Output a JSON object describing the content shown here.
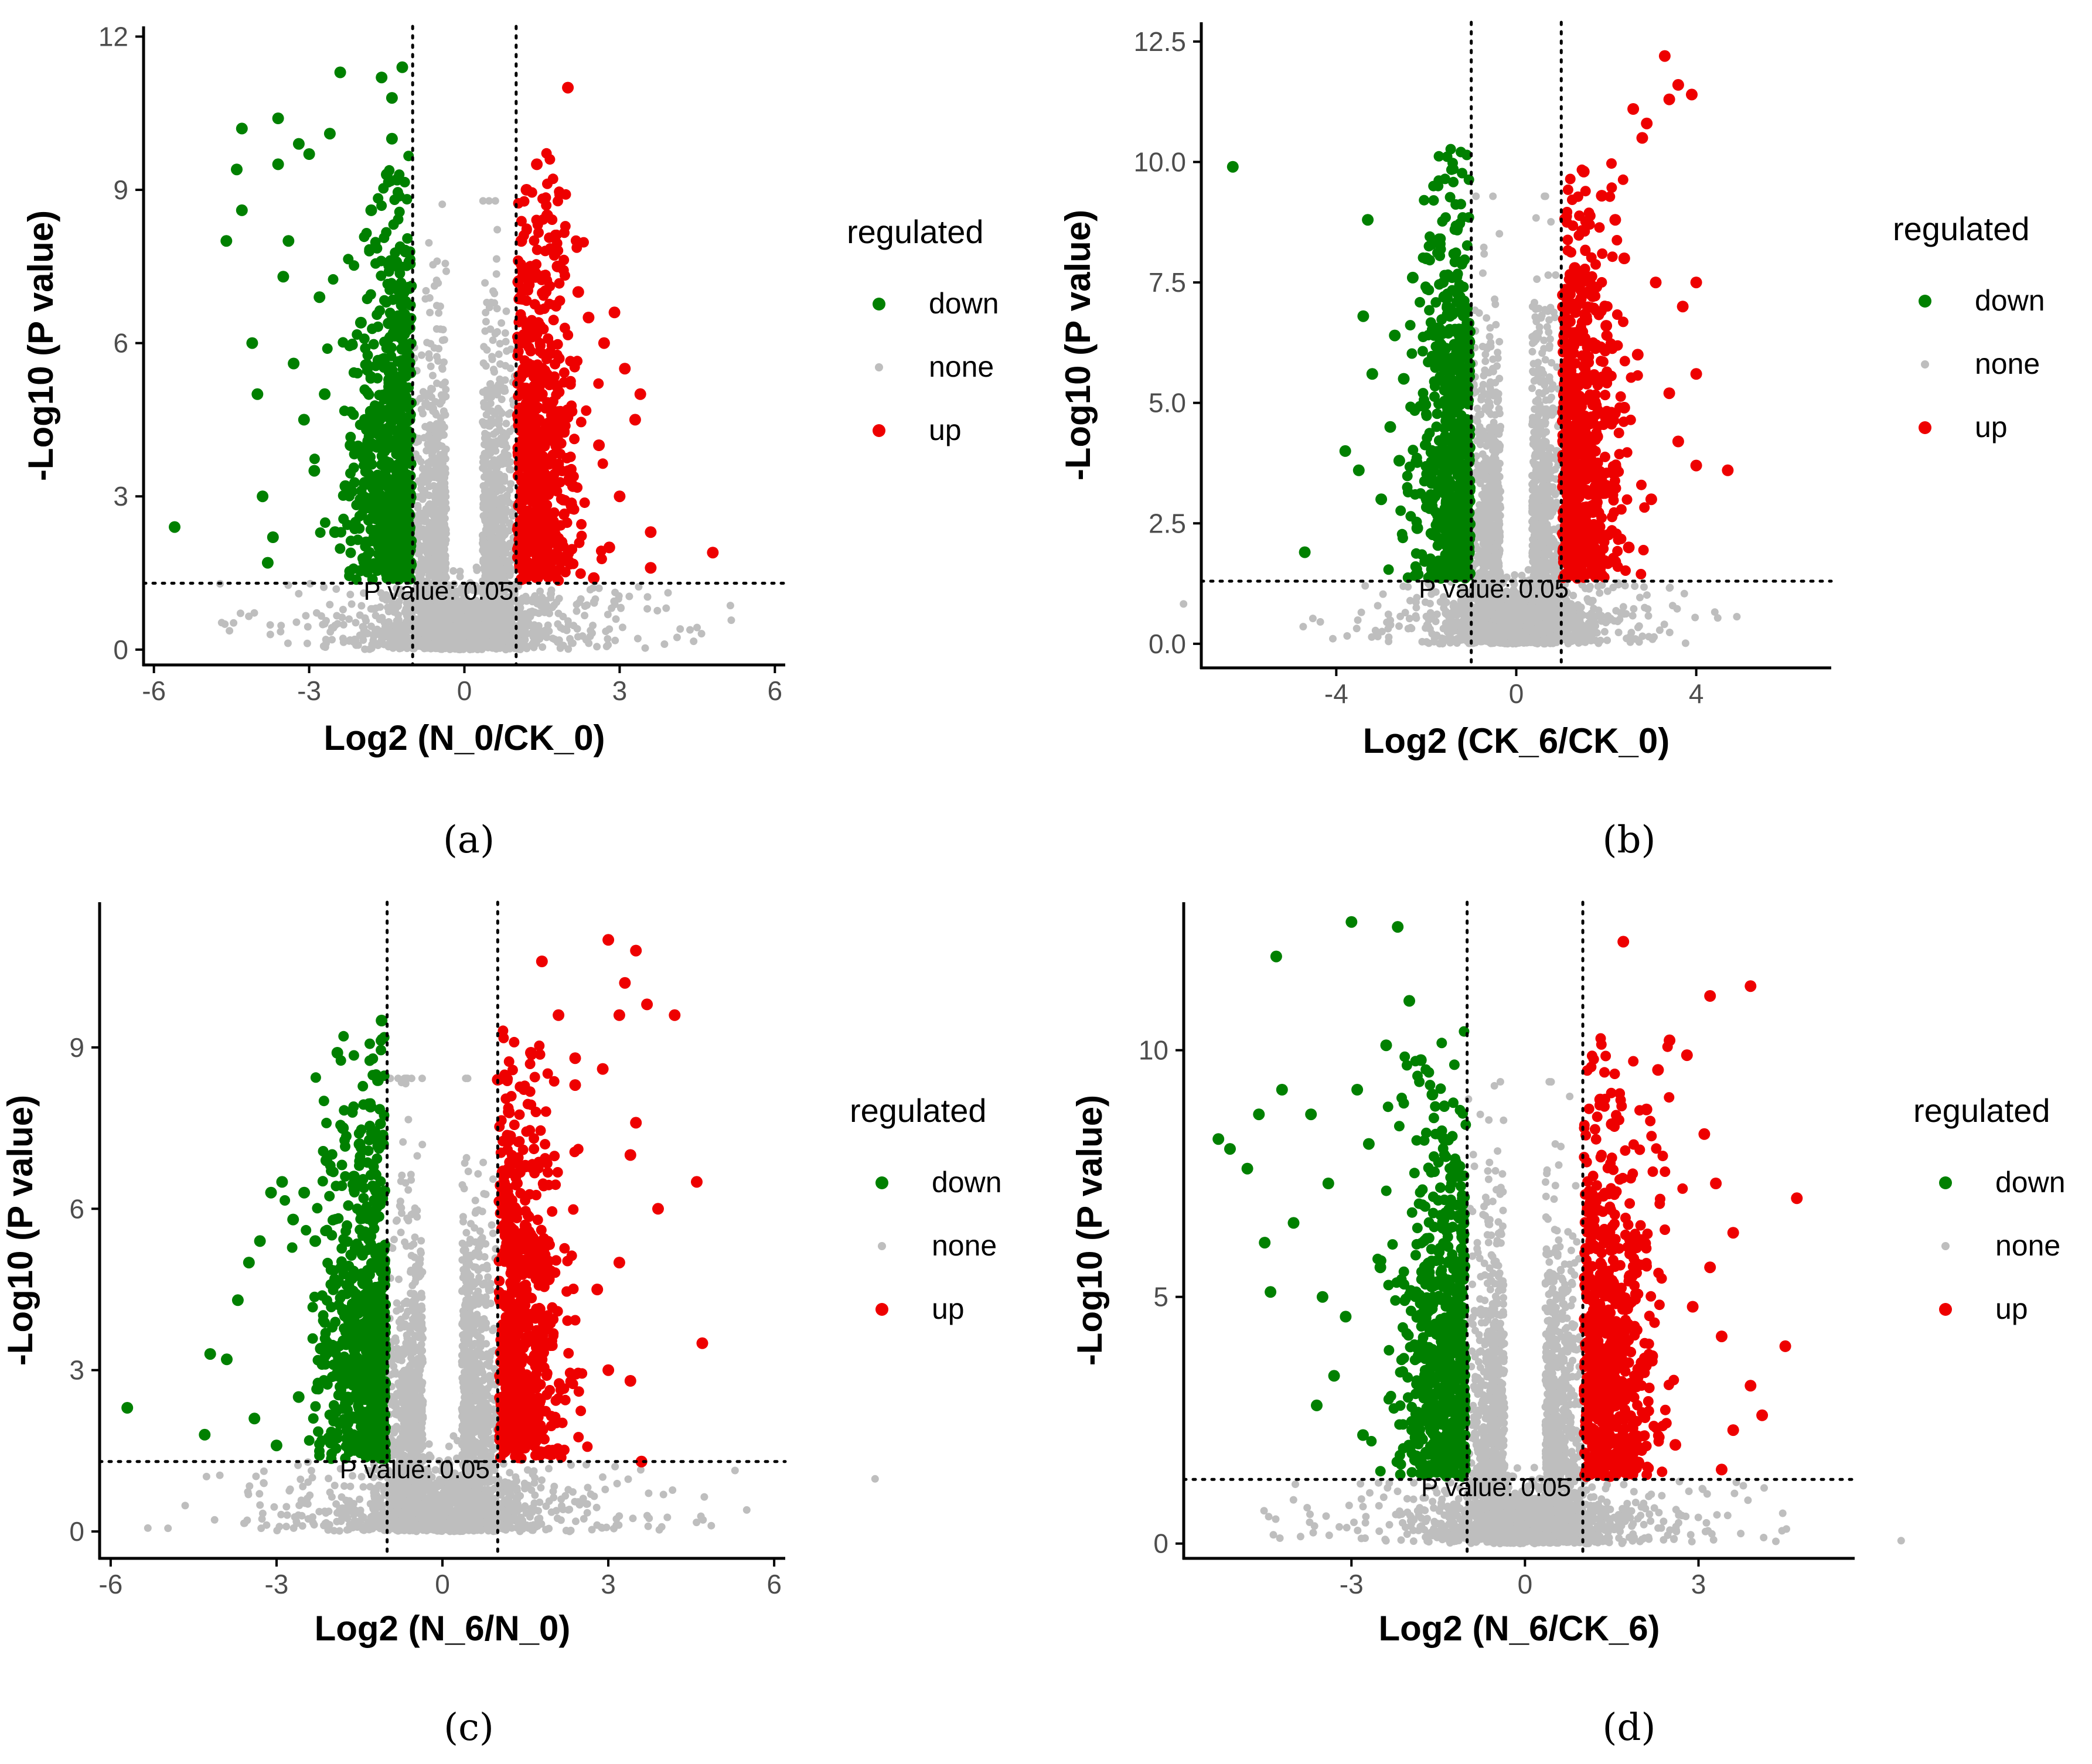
{
  "figure": {
    "legend_title": "regulated",
    "legend_labels": {
      "down": "down",
      "none": "none",
      "up": "up"
    },
    "colors": {
      "down": "#008000",
      "none": "#BEBEBE",
      "up": "#EE0000",
      "axis": "#000000",
      "tick_text": "#4D4D4D"
    },
    "threshold_label": "P value: 0.05"
  },
  "chart_data": [
    {
      "panel": "a",
      "caption": "(a)",
      "type": "scatter",
      "title": "",
      "xlabel": "Log2 (N_0/CK_0)",
      "ylabel": "-Log10 (P value)",
      "xlim": [
        -6.2,
        6.2
      ],
      "ylim": [
        -0.3,
        12.2
      ],
      "xticks": [
        -6,
        -3,
        0,
        3,
        6
      ],
      "xtick_labels": [
        "-6",
        "-3",
        "0",
        "3",
        "6"
      ],
      "yticks": [
        0,
        3,
        6,
        9,
        12
      ],
      "ytick_labels": [
        "0",
        "3",
        "6",
        "9",
        "12"
      ],
      "fc_threshold": [
        -1,
        1
      ],
      "p_threshold": 1.3,
      "threshold_label": "P value: 0.05",
      "series": [
        {
          "name": "down",
          "points": [
            [
              -5.6,
              2.4
            ],
            [
              -4.3,
              10.2
            ],
            [
              -4.6,
              8.0
            ],
            [
              -4.4,
              9.4
            ],
            [
              -4.3,
              8.6
            ],
            [
              -4.1,
              6.0
            ],
            [
              -4.0,
              5.0
            ],
            [
              -3.9,
              3.0
            ],
            [
              -3.8,
              1.7
            ],
            [
              -3.7,
              2.2
            ],
            [
              -3.6,
              10.4
            ],
            [
              -3.6,
              9.5
            ],
            [
              -3.4,
              8.0
            ],
            [
              -3.2,
              9.9
            ],
            [
              -3.0,
              9.7
            ],
            [
              -2.8,
              6.9
            ],
            [
              -2.6,
              10.1
            ],
            [
              -2.4,
              11.3
            ],
            [
              -2.0,
              6.4
            ],
            [
              -1.6,
              11.2
            ],
            [
              -1.4,
              10.8
            ],
            [
              -1.4,
              10.0
            ],
            [
              -1.2,
              11.4
            ],
            [
              -2.9,
              3.5
            ],
            [
              -3.1,
              4.5
            ],
            [
              -2.5,
              2.3
            ],
            [
              -2.2,
              4.0
            ],
            [
              -1.8,
              8.6
            ],
            [
              -1.5,
              9.3
            ],
            [
              -1.3,
              9.2
            ],
            [
              -3.5,
              7.3
            ],
            [
              -3.3,
              5.6
            ],
            [
              -2.7,
              5.0
            ],
            [
              -2.3,
              3.2
            ],
            [
              -1.9,
              2.1
            ]
          ]
        },
        {
          "name": "up",
          "points": [
            [
              2.0,
              11.0
            ],
            [
              1.2,
              9.0
            ],
            [
              1.4,
              9.5
            ],
            [
              1.6,
              8.5
            ],
            [
              1.1,
              8.0
            ],
            [
              1.8,
              7.5
            ],
            [
              2.2,
              7.0
            ],
            [
              2.4,
              6.5
            ],
            [
              2.7,
              6.0
            ],
            [
              2.9,
              6.6
            ],
            [
              3.1,
              5.5
            ],
            [
              3.4,
              5.0
            ],
            [
              3.6,
              2.3
            ],
            [
              3.6,
              1.6
            ],
            [
              4.8,
              1.9
            ],
            [
              2.5,
              1.4
            ],
            [
              3.0,
              3.0
            ],
            [
              2.6,
              4.0
            ],
            [
              3.3,
              4.5
            ],
            [
              1.5,
              5.5
            ],
            [
              2.1,
              3.2
            ],
            [
              2.8,
              2.0
            ]
          ]
        }
      ]
    },
    {
      "panel": "b",
      "caption": "(b)",
      "type": "scatter",
      "title": "",
      "xlabel": "Log2 (CK_6/CK_0)",
      "ylabel": "-Log10 (P value)",
      "xlim": [
        -7.0,
        7.0
      ],
      "ylim": [
        -0.5,
        12.9
      ],
      "xticks": [
        -4,
        0,
        4
      ],
      "xtick_labels": [
        "-4",
        "0",
        "4"
      ],
      "yticks": [
        0,
        2.5,
        5.0,
        7.5,
        10.0,
        12.5
      ],
      "ytick_labels": [
        "0.0",
        "2.5",
        "5.0",
        "7.5",
        "10.0",
        "12.5"
      ],
      "fc_threshold": [
        -1,
        1
      ],
      "p_threshold": 1.3,
      "threshold_label": "P value: 0.05",
      "series": [
        {
          "name": "down",
          "points": [
            [
              -6.3,
              9.9
            ],
            [
              -3.3,
              8.8
            ],
            [
              -4.7,
              1.9
            ],
            [
              -3.8,
              4.0
            ],
            [
              -3.4,
              6.8
            ],
            [
              -3.2,
              5.6
            ],
            [
              -2.7,
              6.4
            ],
            [
              -2.5,
              5.5
            ],
            [
              -2.3,
              7.6
            ],
            [
              -2.0,
              8.0
            ],
            [
              -1.7,
              8.3
            ],
            [
              -1.6,
              7.2
            ],
            [
              -1.4,
              6.5
            ],
            [
              -3.5,
              3.6
            ],
            [
              -3.0,
              3.0
            ],
            [
              -2.8,
              4.5
            ],
            [
              -2.2,
              2.4
            ],
            [
              -1.9,
              1.7
            ],
            [
              -1.3,
              5.8
            ],
            [
              -2.6,
              3.8
            ]
          ]
        },
        {
          "name": "up",
          "points": [
            [
              3.3,
              12.2
            ],
            [
              3.6,
              11.6
            ],
            [
              3.4,
              11.3
            ],
            [
              3.9,
              11.4
            ],
            [
              2.9,
              10.8
            ],
            [
              2.8,
              10.5
            ],
            [
              2.6,
              11.1
            ],
            [
              1.5,
              9.8
            ],
            [
              1.9,
              9.3
            ],
            [
              2.2,
              8.8
            ],
            [
              2.4,
              8.0
            ],
            [
              3.1,
              7.5
            ],
            [
              3.7,
              7.0
            ],
            [
              4.0,
              7.5
            ],
            [
              4.0,
              5.6
            ],
            [
              3.6,
              4.2
            ],
            [
              4.7,
              3.6
            ],
            [
              4.0,
              3.7
            ],
            [
              1.3,
              7.8
            ],
            [
              1.6,
              7.3
            ],
            [
              2.0,
              6.6
            ],
            [
              2.7,
              6.0
            ],
            [
              3.4,
              5.2
            ],
            [
              2.5,
              2.0
            ],
            [
              2.2,
              1.7
            ],
            [
              3.0,
              3.0
            ],
            [
              1.8,
              4.3
            ],
            [
              2.4,
              4.9
            ]
          ]
        }
      ]
    },
    {
      "panel": "c",
      "caption": "(c)",
      "type": "scatter",
      "title": "",
      "xlabel": "Log2 (N_6/N_0)",
      "ylabel": "-Log10 (P value)",
      "xlim": [
        -6.2,
        6.2
      ],
      "ylim": [
        -0.5,
        11.7
      ],
      "xticks": [
        -6,
        -3,
        0,
        3,
        6
      ],
      "xtick_labels": [
        "-6",
        "-3",
        "0",
        "3",
        "6"
      ],
      "yticks": [
        0,
        3,
        6,
        9
      ],
      "ytick_labels": [
        "0",
        "3",
        "6",
        "9"
      ],
      "fc_threshold": [
        -1,
        1
      ],
      "p_threshold": 1.3,
      "threshold_label": "P value: 0.05",
      "series": [
        {
          "name": "down",
          "points": [
            [
              -5.7,
              2.3
            ],
            [
              -4.3,
              1.8
            ],
            [
              -4.2,
              3.3
            ],
            [
              -3.9,
              3.2
            ],
            [
              -3.7,
              4.3
            ],
            [
              -3.5,
              5.0
            ],
            [
              -3.3,
              5.4
            ],
            [
              -3.1,
              6.3
            ],
            [
              -2.9,
              6.5
            ],
            [
              -2.7,
              5.8
            ],
            [
              -2.5,
              6.3
            ],
            [
              -2.3,
              5.4
            ],
            [
              -2.1,
              6.9
            ],
            [
              -1.9,
              8.9
            ],
            [
              -1.8,
              7.5
            ],
            [
              -1.6,
              6.6
            ],
            [
              -1.5,
              7.2
            ],
            [
              -1.3,
              7.9
            ],
            [
              -1.1,
              9.5
            ],
            [
              -1.2,
              7.3
            ],
            [
              -3.4,
              2.1
            ],
            [
              -3.0,
              1.6
            ],
            [
              -2.6,
              2.5
            ],
            [
              -2.2,
              3.4
            ],
            [
              -1.8,
              4.1
            ]
          ]
        },
        {
          "name": "up",
          "points": [
            [
              3.0,
              11.0
            ],
            [
              3.5,
              10.8
            ],
            [
              3.3,
              10.2
            ],
            [
              1.8,
              10.6
            ],
            [
              3.7,
              9.8
            ],
            [
              4.2,
              9.6
            ],
            [
              3.2,
              9.6
            ],
            [
              2.1,
              9.6
            ],
            [
              1.6,
              8.9
            ],
            [
              2.4,
              8.3
            ],
            [
              2.4,
              8.8
            ],
            [
              2.9,
              8.6
            ],
            [
              1.0,
              8.4
            ],
            [
              3.5,
              7.6
            ],
            [
              1.2,
              7.8
            ],
            [
              1.5,
              6.8
            ],
            [
              3.4,
              7.0
            ],
            [
              3.9,
              6.0
            ],
            [
              4.6,
              6.5
            ],
            [
              4.7,
              3.5
            ],
            [
              3.2,
              5.0
            ],
            [
              2.8,
              4.5
            ],
            [
              3.0,
              3.0
            ],
            [
              3.6,
              1.3
            ],
            [
              3.4,
              2.8
            ]
          ]
        }
      ]
    },
    {
      "panel": "d",
      "caption": "(d)",
      "type": "scatter",
      "title": "",
      "xlabel": "Log2 (N_6/CK_6)",
      "ylabel": "-Log10 (P value)",
      "xlim": [
        -5.9,
        5.7
      ],
      "ylim": [
        -0.3,
        13.0
      ],
      "xticks": [
        -3,
        0,
        3
      ],
      "xtick_labels": [
        "-3",
        "0",
        "3"
      ],
      "yticks": [
        0,
        5,
        10
      ],
      "ytick_labels": [
        "0",
        "5",
        "10"
      ],
      "fc_threshold": [
        -1,
        1
      ],
      "p_threshold": 1.3,
      "threshold_label": "P value: 0.05",
      "series": [
        {
          "name": "down",
          "points": [
            [
              -5.3,
              8.2
            ],
            [
              -5.1,
              8.0
            ],
            [
              -4.8,
              7.6
            ],
            [
              -4.6,
              8.7
            ],
            [
              -4.5,
              6.1
            ],
            [
              -4.4,
              5.1
            ],
            [
              -4.3,
              11.9
            ],
            [
              -4.2,
              9.2
            ],
            [
              -3.7,
              8.7
            ],
            [
              -3.4,
              7.3
            ],
            [
              -3.0,
              12.6
            ],
            [
              -2.9,
              9.2
            ],
            [
              -2.7,
              8.1
            ],
            [
              -2.4,
              10.1
            ],
            [
              -2.2,
              12.5
            ],
            [
              -2.0,
              11.0
            ],
            [
              -1.8,
              9.8
            ],
            [
              -1.6,
              9.1
            ],
            [
              -1.4,
              8.2
            ],
            [
              -3.6,
              2.8
            ],
            [
              -3.3,
              3.4
            ],
            [
              -3.1,
              4.6
            ],
            [
              -2.8,
              2.2
            ],
            [
              -2.5,
              5.6
            ],
            [
              -1.9,
              1.7
            ],
            [
              -4.0,
              6.5
            ],
            [
              -3.5,
              5.0
            ]
          ]
        },
        {
          "name": "up",
          "points": [
            [
              1.7,
              12.2
            ],
            [
              3.9,
              11.3
            ],
            [
              3.2,
              11.1
            ],
            [
              2.5,
              10.2
            ],
            [
              2.8,
              9.9
            ],
            [
              2.3,
              9.6
            ],
            [
              2.1,
              8.8
            ],
            [
              1.5,
              8.5
            ],
            [
              1.3,
              9.0
            ],
            [
              3.1,
              8.3
            ],
            [
              3.3,
              7.3
            ],
            [
              4.7,
              7.0
            ],
            [
              3.6,
              6.3
            ],
            [
              3.2,
              5.6
            ],
            [
              2.9,
              4.8
            ],
            [
              3.4,
              4.2
            ],
            [
              3.9,
              3.2
            ],
            [
              4.5,
              4.0
            ],
            [
              4.1,
              2.6
            ],
            [
              3.6,
              2.3
            ],
            [
              3.4,
              1.5
            ],
            [
              2.6,
              2.0
            ],
            [
              2.2,
              3.8
            ],
            [
              1.9,
              6.0
            ]
          ]
        }
      ]
    }
  ]
}
